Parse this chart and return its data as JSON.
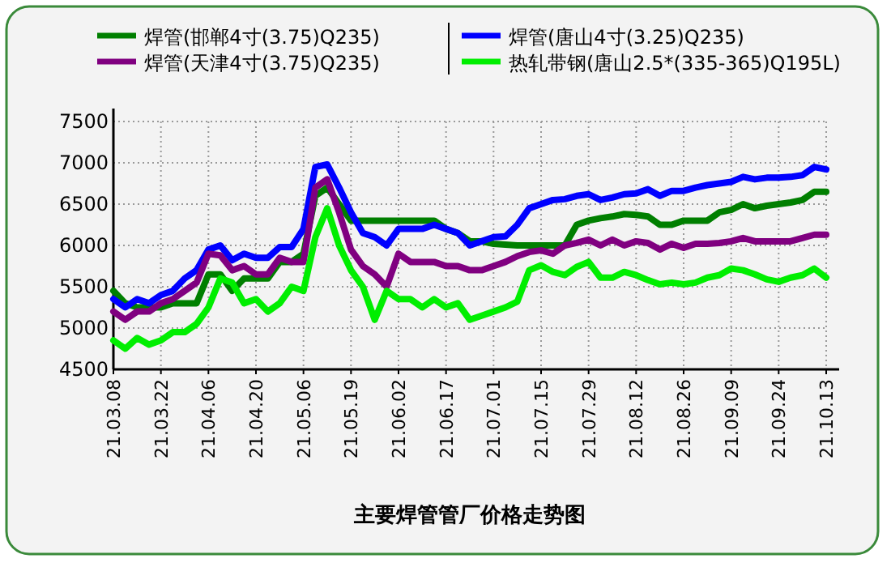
{
  "chart_data": {
    "type": "line",
    "title": "主要焊管管厂价格走势图",
    "categories": [
      "21.03.08",
      null,
      null,
      null,
      "21.03.22",
      null,
      null,
      null,
      "21.04.06",
      null,
      null,
      null,
      "21.04.20",
      null,
      null,
      null,
      "21.05.06",
      null,
      null,
      null,
      "21.05.19",
      null,
      null,
      null,
      "21.06.02",
      null,
      null,
      null,
      "21.06.17",
      null,
      null,
      null,
      "21.07.01",
      null,
      null,
      null,
      "21.07.15",
      null,
      null,
      null,
      "21.07.29",
      null,
      null,
      null,
      "21.08.12",
      null,
      null,
      null,
      "21.08.26",
      null,
      null,
      null,
      "21.09.09",
      null,
      null,
      null,
      "21.09.24",
      null,
      null,
      null,
      "21.10.13"
    ],
    "ylim": [
      4500,
      7500
    ],
    "yticks": [
      4500,
      5000,
      5500,
      6000,
      6500,
      7000,
      7500
    ],
    "grid": true,
    "legend": "top",
    "marker": "none",
    "line_style": "solid",
    "series": [
      {
        "name": "焊管(邯郸4寸(3.75)Q235)",
        "color": "#007f00",
        "values": [
          5450,
          5300,
          5250,
          5250,
          5250,
          5300,
          5300,
          5300,
          5650,
          5650,
          5450,
          5600,
          5600,
          5600,
          5800,
          5800,
          5900,
          6600,
          6700,
          6500,
          6300,
          6300,
          6300,
          6300,
          6300,
          6300,
          6300,
          6300,
          6200,
          6150,
          6050,
          6050,
          6020,
          6010,
          6000,
          6000,
          6000,
          6000,
          6000,
          6250,
          6300,
          6330,
          6350,
          6380,
          6370,
          6350,
          6250,
          6250,
          6300,
          6300,
          6300,
          6400,
          6430,
          6500,
          6450,
          6480,
          6500,
          6520,
          6550,
          6650,
          6650
        ]
      },
      {
        "name": "焊管(唐山4寸(3.25)Q235)",
        "color": "#0000ff",
        "values": [
          5350,
          5250,
          5350,
          5300,
          5400,
          5450,
          5600,
          5700,
          5950,
          6000,
          5820,
          5900,
          5850,
          5850,
          5980,
          5980,
          6200,
          6950,
          6980,
          6700,
          6400,
          6150,
          6100,
          6000,
          6200,
          6200,
          6200,
          6250,
          6200,
          6150,
          6000,
          6050,
          6100,
          6110,
          6250,
          6450,
          6500,
          6550,
          6560,
          6600,
          6620,
          6550,
          6580,
          6620,
          6630,
          6680,
          6600,
          6660,
          6660,
          6700,
          6730,
          6750,
          6770,
          6830,
          6800,
          6820,
          6820,
          6830,
          6850,
          6950,
          6920
        ]
      },
      {
        "name": "焊管(天津4寸(3.75)Q235)",
        "color": "#800080",
        "values": [
          5200,
          5100,
          5200,
          5200,
          5300,
          5350,
          5450,
          5550,
          5900,
          5880,
          5700,
          5750,
          5650,
          5650,
          5850,
          5800,
          5800,
          6700,
          6800,
          6400,
          5950,
          5750,
          5650,
          5500,
          5900,
          5800,
          5800,
          5800,
          5750,
          5750,
          5700,
          5700,
          5750,
          5800,
          5870,
          5920,
          5940,
          5900,
          6000,
          6030,
          6070,
          6000,
          6070,
          6000,
          6050,
          6030,
          5950,
          6020,
          5970,
          6020,
          6020,
          6030,
          6050,
          6090,
          6050,
          6050,
          6050,
          6050,
          6090,
          6130,
          6130
        ]
      },
      {
        "name": "热轧带钢(唐山2.5*(335-365)Q195L)",
        "color": "#00ee00",
        "values": [
          4850,
          4750,
          4880,
          4800,
          4850,
          4950,
          4950,
          5050,
          5250,
          5600,
          5550,
          5300,
          5350,
          5200,
          5300,
          5500,
          5450,
          6100,
          6450,
          6000,
          5700,
          5500,
          5100,
          5450,
          5350,
          5350,
          5250,
          5350,
          5250,
          5300,
          5100,
          5150,
          5200,
          5250,
          5320,
          5700,
          5760,
          5680,
          5640,
          5740,
          5800,
          5610,
          5610,
          5680,
          5640,
          5580,
          5530,
          5550,
          5530,
          5550,
          5610,
          5640,
          5720,
          5700,
          5650,
          5590,
          5560,
          5610,
          5640,
          5720,
          5610
        ]
      }
    ]
  }
}
